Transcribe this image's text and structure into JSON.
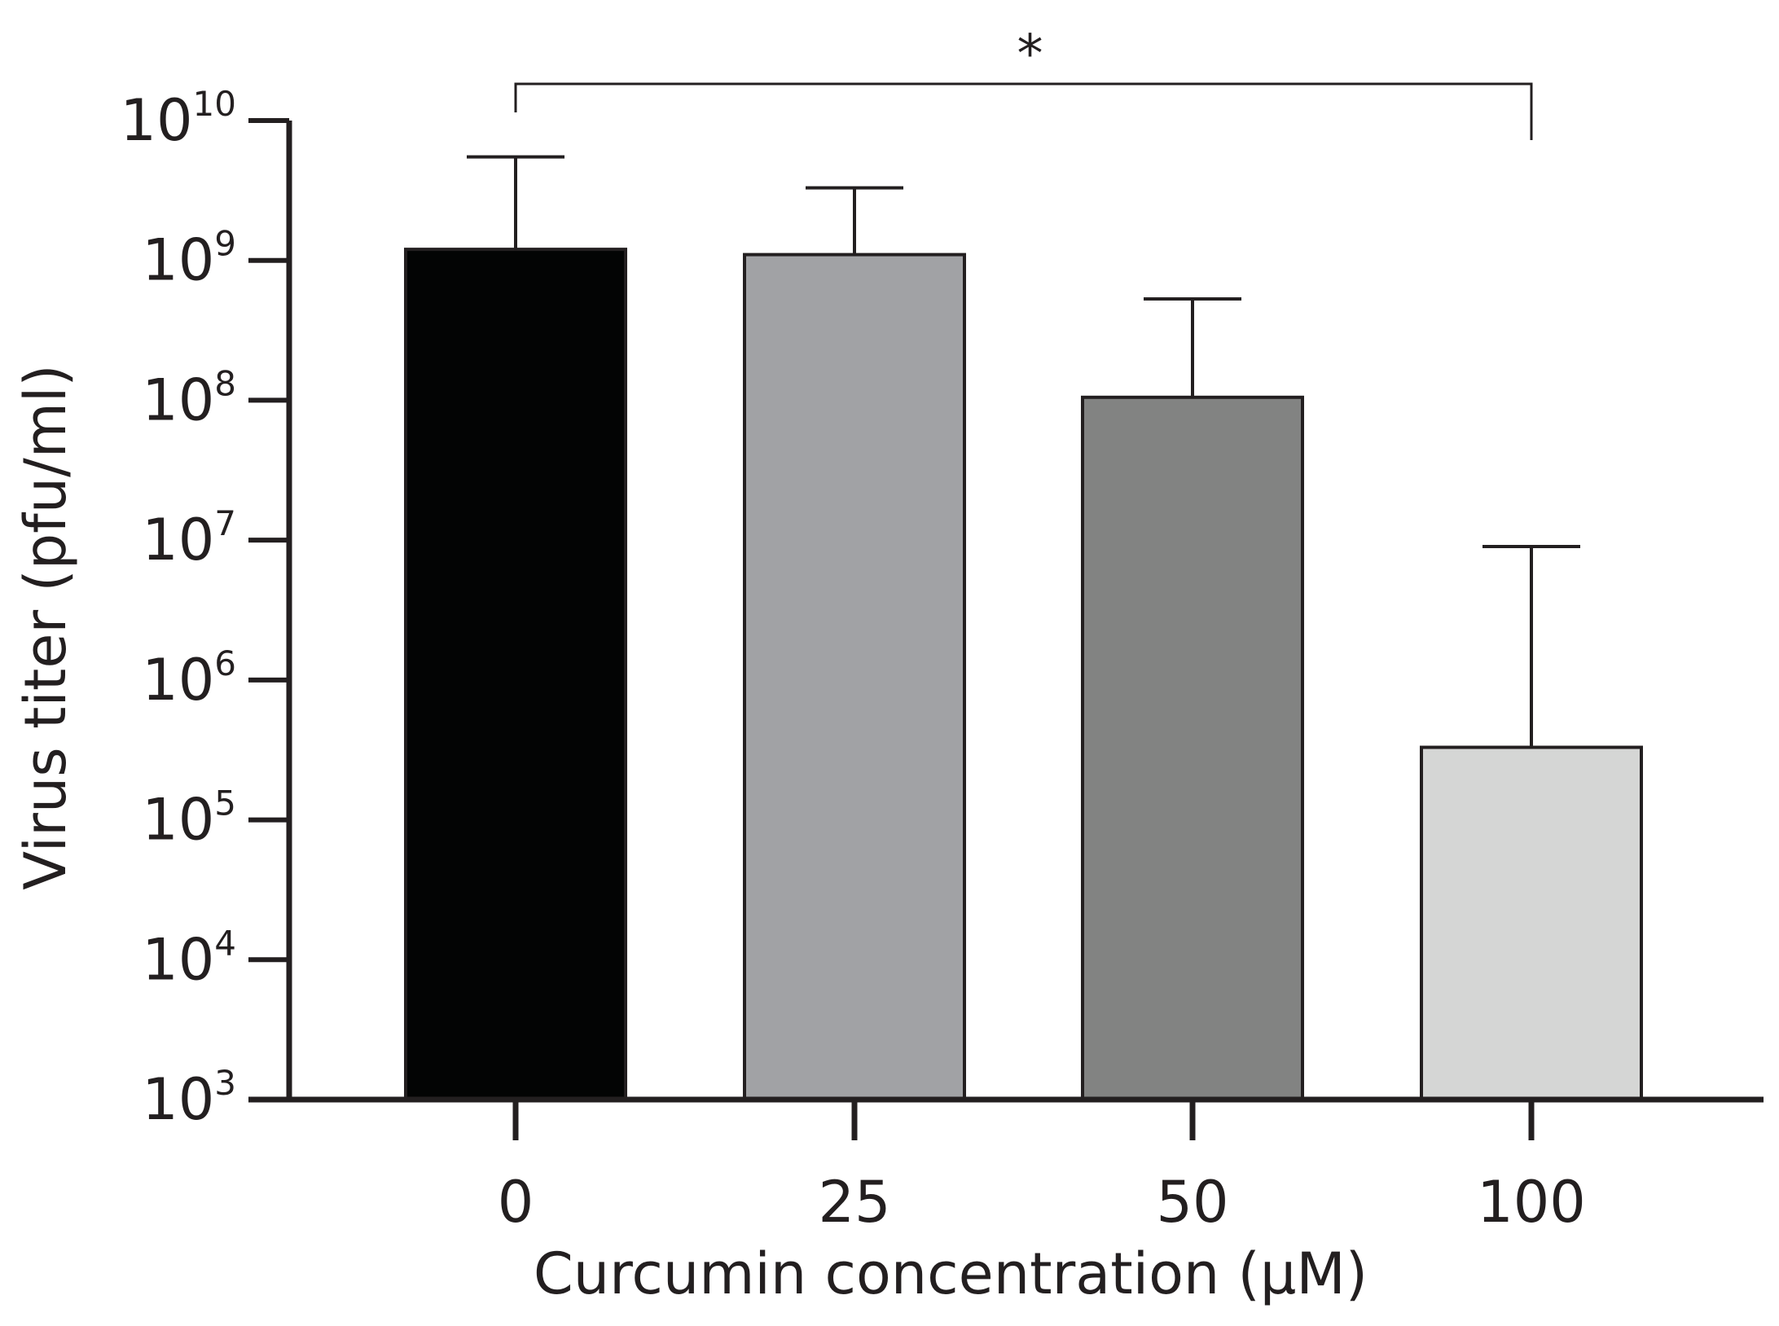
{
  "chart_data": {
    "type": "bar",
    "scale": "log10",
    "categories": [
      "0",
      "25",
      "50",
      "100"
    ],
    "values": [
      1200000000,
      1100000000,
      105000000,
      330000
    ],
    "error_upper": [
      5500000000,
      3300000000,
      530000000,
      9000000
    ],
    "bar_colors": [
      "#030404",
      "#a1a2a5",
      "#828382",
      "#d5d6d5"
    ],
    "xlabel": "Curcumin concentration (µM)",
    "ylabel": "Virus titer (pfu/ml)",
    "ylim": [
      1000,
      10000000000
    ],
    "y_ticks": [
      {
        "value": 1000,
        "base": "10",
        "exp": "3"
      },
      {
        "value": 10000,
        "base": "10",
        "exp": "4"
      },
      {
        "value": 100000,
        "base": "10",
        "exp": "5"
      },
      {
        "value": 1000000,
        "base": "10",
        "exp": "6"
      },
      {
        "value": 10000000,
        "base": "10",
        "exp": "7"
      },
      {
        "value": 100000000,
        "base": "10",
        "exp": "8"
      },
      {
        "value": 1000000000,
        "base": "10",
        "exp": "9"
      },
      {
        "value": 10000000000,
        "base": "10",
        "exp": "10"
      }
    ],
    "significance": {
      "from": "0",
      "to": "100",
      "label": "*"
    },
    "grid": false,
    "legend": "none"
  }
}
